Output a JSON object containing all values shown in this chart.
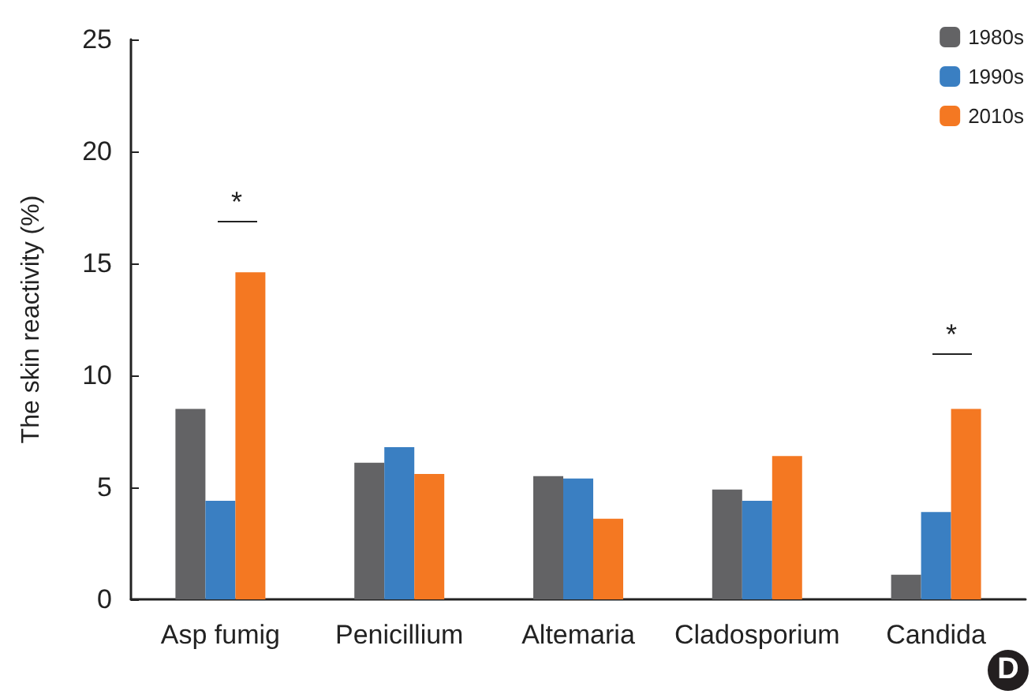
{
  "chart_data": {
    "type": "bar",
    "ylabel": "The skin reactivity (%)",
    "categories": [
      "Asp fumig",
      "Penicillium",
      "Altemaria",
      "Cladosporium",
      "Candida"
    ],
    "series": [
      {
        "name": "1980s",
        "color": "#636365",
        "values": [
          8.5,
          6.1,
          5.5,
          4.9,
          1.1
        ]
      },
      {
        "name": "1990s",
        "color": "#3a7fc2",
        "values": [
          4.4,
          6.8,
          5.4,
          4.4,
          3.9
        ]
      },
      {
        "name": "2010s",
        "color": "#f47822",
        "values": [
          14.6,
          5.6,
          3.6,
          6.4,
          8.5
        ]
      }
    ],
    "ylim": [
      0,
      25
    ],
    "yticks": [
      0,
      5,
      10,
      15,
      20,
      25
    ],
    "grid": false,
    "legend": "top right",
    "annotations": [
      "*",
      "*",
      "D"
    ]
  }
}
